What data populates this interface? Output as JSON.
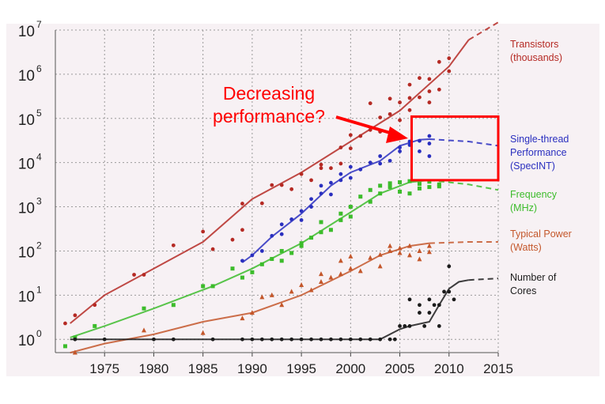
{
  "chart_data": {
    "type": "scatter",
    "title": "",
    "xlabel": "",
    "ylabel": "",
    "xlim": [
      1970,
      2015
    ],
    "ylim_log10": [
      -0.3,
      7
    ],
    "y_scale": "log",
    "x_ticks": [
      "1975",
      "1980",
      "1985",
      "1990",
      "1995",
      "2000",
      "2005",
      "2010",
      "2015"
    ],
    "y_ticks": [
      {
        "base": "10",
        "exp": "0"
      },
      {
        "base": "10",
        "exp": "1"
      },
      {
        "base": "10",
        "exp": "2"
      },
      {
        "base": "10",
        "exp": "3"
      },
      {
        "base": "10",
        "exp": "4"
      },
      {
        "base": "10",
        "exp": "5"
      },
      {
        "base": "10",
        "exp": "6"
      },
      {
        "base": "10",
        "exp": "7"
      }
    ],
    "grid": true,
    "legend_placement": "right",
    "series": [
      {
        "name": "Transistors (thousands)",
        "legend_lines": [
          "Transistors",
          "(thousands)"
        ],
        "color": "#b52a24",
        "marker": "circle",
        "trend": [
          [
            1971.5,
            2.3
          ],
          [
            1975,
            10
          ],
          [
            1980,
            40
          ],
          [
            1985,
            160
          ],
          [
            1990,
            1500
          ],
          [
            1995,
            6000
          ],
          [
            2000,
            30000
          ],
          [
            2005,
            150000
          ],
          [
            2010,
            1500000
          ],
          [
            2012,
            6000000
          ]
        ],
        "trend_projection": [
          [
            2012,
            6000000
          ],
          [
            2015,
            15000000
          ]
        ],
        "points": [
          [
            1971,
            2.3
          ],
          [
            1972,
            3.5
          ],
          [
            1974,
            6
          ],
          [
            1978,
            29
          ],
          [
            1979,
            29
          ],
          [
            1982,
            134
          ],
          [
            1985,
            275
          ],
          [
            1986,
            110
          ],
          [
            1988,
            180
          ],
          [
            1989,
            1180
          ],
          [
            1989,
            300
          ],
          [
            1991,
            1200
          ],
          [
            1992,
            3100
          ],
          [
            1993,
            3100
          ],
          [
            1994,
            2500
          ],
          [
            1995,
            5500
          ],
          [
            1996,
            4000
          ],
          [
            1997,
            7500
          ],
          [
            1997,
            9000
          ],
          [
            1998,
            7500
          ],
          [
            1999,
            22000
          ],
          [
            1999,
            9500
          ],
          [
            2000,
            42000
          ],
          [
            2000,
            21000
          ],
          [
            2001,
            40000
          ],
          [
            2002,
            55000
          ],
          [
            2002,
            220000
          ],
          [
            2003,
            105000
          ],
          [
            2003,
            50000
          ],
          [
            2004,
            125000
          ],
          [
            2004,
            280000
          ],
          [
            2005,
            230000
          ],
          [
            2005,
            91000
          ],
          [
            2006,
            290000
          ],
          [
            2006,
            154000
          ],
          [
            2006,
            580000
          ],
          [
            2007,
            820000
          ],
          [
            2007,
            300000
          ],
          [
            2008,
            781000
          ],
          [
            2008,
            230000
          ],
          [
            2008,
            410000
          ],
          [
            2009,
            1900000
          ],
          [
            2009,
            450000
          ],
          [
            2010,
            1170000
          ],
          [
            2010,
            2300000
          ]
        ]
      },
      {
        "name": "Single-thread Performance (SpecINT)",
        "legend_lines": [
          "Single-thread",
          "Performance",
          "(SpecINT)"
        ],
        "color": "#2a2fbf",
        "marker": "circle",
        "trend": [
          [
            1989,
            55
          ],
          [
            1990,
            80
          ],
          [
            1992,
            210
          ],
          [
            1995,
            700
          ],
          [
            1998,
            3000
          ],
          [
            2000,
            6000
          ],
          [
            2003,
            11000
          ],
          [
            2005,
            24000
          ],
          [
            2007,
            33000
          ],
          [
            2008,
            34000
          ]
        ],
        "trend_projection": [
          [
            2008,
            34000
          ],
          [
            2012,
            30000
          ],
          [
            2015,
            24000
          ]
        ],
        "points": [
          [
            1989,
            60
          ],
          [
            1990,
            80
          ],
          [
            1991,
            100
          ],
          [
            1992,
            220
          ],
          [
            1993,
            400
          ],
          [
            1993,
            240
          ],
          [
            1994,
            520
          ],
          [
            1995,
            800
          ],
          [
            1995,
            500
          ],
          [
            1996,
            1000
          ],
          [
            1996,
            1500
          ],
          [
            1997,
            2000
          ],
          [
            1997,
            3000
          ],
          [
            1998,
            3500
          ],
          [
            1998,
            1900
          ],
          [
            1999,
            4000
          ],
          [
            1999,
            5500
          ],
          [
            2000,
            8000
          ],
          [
            2000,
            4500
          ],
          [
            2001,
            7000
          ],
          [
            2002,
            10000
          ],
          [
            2003,
            14000
          ],
          [
            2003,
            9500
          ],
          [
            2004,
            11000
          ],
          [
            2005,
            18000
          ],
          [
            2005,
            22000
          ],
          [
            2006,
            30000
          ],
          [
            2006,
            25000
          ],
          [
            2007,
            31000
          ],
          [
            2007,
            18000
          ],
          [
            2008,
            27000
          ],
          [
            2008,
            40000
          ],
          [
            2008,
            14000
          ]
        ]
      },
      {
        "name": "Frequency (MHz)",
        "legend_lines": [
          "Frequency",
          "(MHz)"
        ],
        "color": "#3cbc2b",
        "marker": "square",
        "trend": [
          [
            1971.5,
            1.1
          ],
          [
            1975,
            2
          ],
          [
            1980,
            5
          ],
          [
            1986,
            16
          ],
          [
            1990,
            40
          ],
          [
            1995,
            150
          ],
          [
            2000,
            750
          ],
          [
            2003,
            2000
          ],
          [
            2006,
            3600
          ],
          [
            2008,
            4000
          ]
        ],
        "trend_projection": [
          [
            2008,
            4000
          ],
          [
            2012,
            3200
          ],
          [
            2015,
            2400
          ]
        ],
        "points": [
          [
            1971,
            0.7
          ],
          [
            1972,
            1.1
          ],
          [
            1974,
            2
          ],
          [
            1979,
            5
          ],
          [
            1982,
            6
          ],
          [
            1985,
            16
          ],
          [
            1986,
            16
          ],
          [
            1988,
            40
          ],
          [
            1989,
            25
          ],
          [
            1990,
            33
          ],
          [
            1991,
            50
          ],
          [
            1992,
            66
          ],
          [
            1993,
            60
          ],
          [
            1993,
            100
          ],
          [
            1994,
            90
          ],
          [
            1995,
            150
          ],
          [
            1995,
            130
          ],
          [
            1996,
            200
          ],
          [
            1997,
            266
          ],
          [
            1997,
            450
          ],
          [
            1998,
            300
          ],
          [
            1999,
            500
          ],
          [
            1999,
            700
          ],
          [
            2000,
            1000
          ],
          [
            2000,
            600
          ],
          [
            2001,
            1700
          ],
          [
            2002,
            2400
          ],
          [
            2002,
            1300
          ],
          [
            2003,
            3000
          ],
          [
            2003,
            2000
          ],
          [
            2004,
            3400
          ],
          [
            2004,
            2800
          ],
          [
            2005,
            3600
          ],
          [
            2005,
            2200
          ],
          [
            2006,
            3800
          ],
          [
            2006,
            2000
          ],
          [
            2007,
            3300
          ],
          [
            2007,
            2600
          ],
          [
            2008,
            3700
          ],
          [
            2008,
            2800
          ],
          [
            2009,
            3200
          ],
          [
            2009,
            2900
          ]
        ]
      },
      {
        "name": "Typical Power (Watts)",
        "legend_lines": [
          "Typical Power",
          "(Watts)"
        ],
        "color": "#c4572b",
        "marker": "triangle",
        "trend": [
          [
            1971.5,
            0.5
          ],
          [
            1975,
            0.8
          ],
          [
            1980,
            1.3
          ],
          [
            1985,
            2.5
          ],
          [
            1990,
            4
          ],
          [
            1995,
            10
          ],
          [
            2000,
            35
          ],
          [
            2003,
            80
          ],
          [
            2006,
            130
          ],
          [
            2008,
            150
          ]
        ],
        "trend_projection": [
          [
            2008,
            150
          ],
          [
            2012,
            160
          ],
          [
            2015,
            160
          ]
        ],
        "points": [
          [
            1972,
            0.5
          ],
          [
            1979,
            1.6
          ],
          [
            1985,
            1.4
          ],
          [
            1989,
            3
          ],
          [
            1990,
            4
          ],
          [
            1991,
            9
          ],
          [
            1992,
            10
          ],
          [
            1993,
            6
          ],
          [
            1994,
            12
          ],
          [
            1995,
            17
          ],
          [
            1996,
            13
          ],
          [
            1997,
            30
          ],
          [
            1997,
            20
          ],
          [
            1998,
            25
          ],
          [
            1999,
            60
          ],
          [
            1999,
            30
          ],
          [
            2000,
            40
          ],
          [
            2000,
            75
          ],
          [
            2001,
            35
          ],
          [
            2002,
            70
          ],
          [
            2003,
            82
          ],
          [
            2003,
            45
          ],
          [
            2004,
            100
          ],
          [
            2004,
            130
          ],
          [
            2005,
            90
          ],
          [
            2005,
            115
          ],
          [
            2006,
            80
          ],
          [
            2006,
            130
          ],
          [
            2007,
            100
          ],
          [
            2007,
            65
          ],
          [
            2008,
            130
          ],
          [
            2008,
            95
          ]
        ]
      },
      {
        "name": "Number of Cores",
        "legend_lines": [
          "Number of",
          "Cores"
        ],
        "color": "#1c1c1c",
        "marker": "circle",
        "trend": [
          [
            1971.5,
            1
          ],
          [
            1985,
            1
          ],
          [
            2003,
            1
          ],
          [
            2005,
            1.7
          ],
          [
            2006,
            2
          ],
          [
            2008,
            2.5
          ],
          [
            2009,
            6
          ],
          [
            2010,
            14
          ],
          [
            2011,
            20
          ],
          [
            2012,
            22
          ]
        ],
        "trend_projection": [
          [
            2012,
            22
          ],
          [
            2015,
            24
          ]
        ],
        "points": [
          [
            1972,
            1
          ],
          [
            1975,
            1
          ],
          [
            1980,
            1
          ],
          [
            1982,
            1
          ],
          [
            1986,
            1
          ],
          [
            1989,
            1
          ],
          [
            1990,
            1
          ],
          [
            1991,
            1
          ],
          [
            1992,
            1
          ],
          [
            1993,
            1
          ],
          [
            1994,
            1
          ],
          [
            1995,
            1
          ],
          [
            1996,
            1
          ],
          [
            1997,
            1
          ],
          [
            1998,
            1
          ],
          [
            1999,
            1
          ],
          [
            2000,
            1
          ],
          [
            2001,
            1
          ],
          [
            2002,
            1
          ],
          [
            2003,
            1
          ],
          [
            2004,
            1
          ],
          [
            2004.5,
            1
          ],
          [
            2005,
            2
          ],
          [
            2005.5,
            2
          ],
          [
            2006,
            2
          ],
          [
            2006,
            8
          ],
          [
            2007,
            4
          ],
          [
            2007,
            6
          ],
          [
            2007.5,
            2
          ],
          [
            2008,
            4
          ],
          [
            2008,
            8
          ],
          [
            2008.5,
            6
          ],
          [
            2009,
            6
          ],
          [
            2009,
            2
          ],
          [
            2009.5,
            12
          ],
          [
            2010,
            12
          ],
          [
            2010,
            45
          ],
          [
            2010.5,
            8
          ]
        ]
      }
    ],
    "annotation": {
      "lines": [
        "Decreasing",
        "performance?"
      ],
      "color": "#ff0000",
      "highlight_box": {
        "x_start": 2006.2,
        "x_end": 2015,
        "y_low": 4000,
        "y_high": 110000
      }
    }
  }
}
